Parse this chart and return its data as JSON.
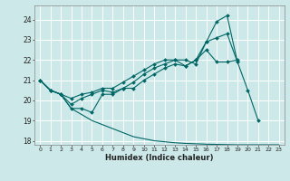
{
  "background_color": "#cce8e8",
  "grid_color": "#ffffff",
  "line_color": "#006666",
  "xlabel": "Humidex (Indice chaleur)",
  "xlim": [
    -0.5,
    23.5
  ],
  "ylim": [
    17.8,
    24.7
  ],
  "yticks": [
    18,
    19,
    20,
    21,
    22,
    23,
    24
  ],
  "xticks": [
    0,
    1,
    2,
    3,
    4,
    5,
    6,
    7,
    8,
    9,
    10,
    11,
    12,
    13,
    14,
    15,
    16,
    17,
    18,
    19,
    20,
    21,
    22,
    23
  ],
  "series": [
    {
      "x": [
        0,
        1,
        2,
        3,
        4,
        5,
        6,
        7,
        8,
        9,
        10,
        11,
        12,
        13,
        14,
        15,
        16,
        17,
        18,
        19,
        20,
        21
      ],
      "y": [
        21.0,
        20.5,
        20.3,
        19.6,
        19.6,
        19.4,
        20.3,
        20.3,
        20.6,
        20.9,
        21.3,
        21.6,
        21.8,
        22.0,
        22.0,
        21.8,
        22.9,
        23.9,
        24.2,
        21.9,
        20.5,
        19.0
      ],
      "marker": "D",
      "markersize": 2.0,
      "linewidth": 0.8
    },
    {
      "x": [
        0,
        1,
        2,
        3,
        4,
        5,
        6,
        7,
        8,
        9,
        10,
        11,
        12,
        13,
        14,
        15,
        16,
        17,
        18,
        19
      ],
      "y": [
        21.0,
        20.5,
        20.3,
        20.1,
        20.3,
        20.4,
        20.6,
        20.6,
        20.9,
        21.2,
        21.5,
        21.8,
        22.0,
        22.0,
        21.7,
        22.0,
        22.9,
        23.1,
        23.3,
        21.9
      ],
      "marker": "D",
      "markersize": 2.0,
      "linewidth": 0.8
    },
    {
      "x": [
        0,
        1,
        2,
        3,
        4,
        5,
        6,
        7,
        8,
        9,
        10,
        11,
        12,
        13,
        14,
        15,
        16,
        17,
        18,
        19
      ],
      "y": [
        21.0,
        20.5,
        20.3,
        19.8,
        20.1,
        20.3,
        20.5,
        20.4,
        20.6,
        20.6,
        21.0,
        21.3,
        21.6,
        21.8,
        21.7,
        22.0,
        22.5,
        21.9,
        21.9,
        22.0
      ],
      "marker": "D",
      "markersize": 2.0,
      "linewidth": 0.8
    },
    {
      "x": [
        0,
        1,
        2,
        3,
        4,
        5,
        6,
        7,
        8,
        9,
        10,
        11,
        12,
        13,
        14,
        15,
        16,
        17,
        18,
        19,
        20,
        21,
        22,
        23
      ],
      "y": [
        21.0,
        20.5,
        20.3,
        19.6,
        19.3,
        19.0,
        18.8,
        18.6,
        18.4,
        18.2,
        18.1,
        18.0,
        17.95,
        17.9,
        17.87,
        17.85,
        17.83,
        17.82,
        17.81,
        17.8,
        17.8,
        17.8,
        17.8,
        17.8
      ],
      "marker": null,
      "markersize": 0,
      "linewidth": 0.8
    }
  ]
}
